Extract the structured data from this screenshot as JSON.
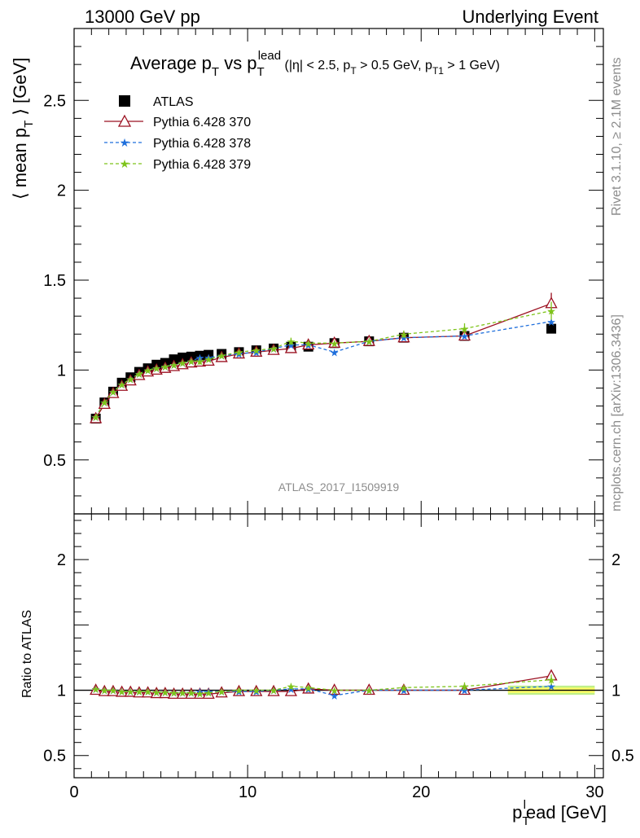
{
  "header": {
    "left": "13000 GeV pp",
    "right": "Underlying Event"
  },
  "side_text": {
    "upper": "Rivet 3.1.10, ≥ 2.1M events",
    "lower": "mcplots.cern.ch [arXiv:1306.3436]"
  },
  "analysis_id": "ATLAS_2017_I1509919",
  "colors": {
    "atlas": "#000000",
    "p370": "#9b1020",
    "p378": "#1f6fdc",
    "p379": "#7ec41a",
    "band_stat": "#ffff66",
    "band_total": "#bfef8a"
  },
  "chart_data": [
    {
      "type": "scatter",
      "title": "Average p_T vs p_T^lead (|η| < 2.5, p_T > 0.5 GeV, p_T1 > 1 GeV)",
      "ylabel": "⟨ mean p_T ⟩ [GeV]",
      "xlabel": "",
      "xlim": [
        0,
        30.5
      ],
      "ylim": [
        0.2,
        2.9
      ],
      "y_ticks": [
        0.5,
        1,
        1.5,
        2,
        2.5
      ],
      "x_ticks": [
        0,
        10,
        20,
        30
      ],
      "legend_position": "top-left",
      "x": [
        1.25,
        1.75,
        2.25,
        2.75,
        3.25,
        3.75,
        4.25,
        4.75,
        5.25,
        5.75,
        6.25,
        6.75,
        7.25,
        7.75,
        8.5,
        9.5,
        10.5,
        11.5,
        12.5,
        13.5,
        15,
        17,
        19,
        22.5,
        27.5
      ],
      "series": [
        {
          "name": "ATLAS",
          "key": "atlas",
          "marker": "square",
          "line": "none",
          "values": [
            0.73,
            0.82,
            0.88,
            0.93,
            0.96,
            0.99,
            1.01,
            1.03,
            1.04,
            1.06,
            1.07,
            1.075,
            1.08,
            1.085,
            1.09,
            1.1,
            1.11,
            1.12,
            1.13,
            1.13,
            1.15,
            1.16,
            1.18,
            1.19,
            1.23
          ]
        },
        {
          "name": "Pythia 6.428 370",
          "key": "p370",
          "marker": "triangle",
          "line": "solid",
          "values": [
            0.73,
            0.81,
            0.87,
            0.91,
            0.94,
            0.97,
            0.99,
            1.0,
            1.01,
            1.02,
            1.03,
            1.04,
            1.045,
            1.05,
            1.07,
            1.09,
            1.1,
            1.11,
            1.12,
            1.14,
            1.15,
            1.16,
            1.18,
            1.19,
            1.37
          ],
          "yerr": [
            0,
            0,
            0,
            0,
            0,
            0,
            0,
            0,
            0,
            0,
            0,
            0,
            0,
            0,
            0,
            0,
            0,
            0,
            0,
            0,
            0,
            0,
            0,
            0,
            0.06
          ]
        },
        {
          "name": "Pythia 6.428 378",
          "key": "p378",
          "marker": "star",
          "line": "dashed",
          "values": [
            0.74,
            0.82,
            0.88,
            0.92,
            0.95,
            0.98,
            1.0,
            1.01,
            1.02,
            1.03,
            1.04,
            1.05,
            1.07,
            1.07,
            1.08,
            1.09,
            1.1,
            1.12,
            1.14,
            1.14,
            1.1,
            1.16,
            1.18,
            1.19,
            1.27
          ]
        },
        {
          "name": "Pythia 6.428 379",
          "key": "p379",
          "marker": "star",
          "line": "dashed",
          "values": [
            0.74,
            0.82,
            0.88,
            0.92,
            0.95,
            0.98,
            1.0,
            1.01,
            1.02,
            1.03,
            1.04,
            1.05,
            1.05,
            1.06,
            1.08,
            1.1,
            1.11,
            1.12,
            1.16,
            1.15,
            1.15,
            1.16,
            1.2,
            1.23,
            1.33
          ],
          "yerr": [
            0,
            0,
            0,
            0,
            0,
            0,
            0,
            0,
            0,
            0,
            0,
            0,
            0.02,
            0,
            0,
            0,
            0,
            0,
            0.02,
            0,
            0,
            0,
            0.02,
            0.03,
            0.05
          ]
        }
      ]
    },
    {
      "type": "scatter",
      "title": "",
      "ylabel": "Ratio to ATLAS",
      "xlabel": "p_T^lead [GeV]",
      "xlim": [
        0,
        30.5
      ],
      "ylim": [
        0.33,
        2.35
      ],
      "y_ticks": [
        0.5,
        1,
        2
      ],
      "x_ticks": [
        0,
        10,
        20,
        30
      ],
      "x": [
        1.25,
        1.75,
        2.25,
        2.75,
        3.25,
        3.75,
        4.25,
        4.75,
        5.25,
        5.75,
        6.25,
        6.75,
        7.25,
        7.75,
        8.5,
        9.5,
        10.5,
        11.5,
        12.5,
        13.5,
        15,
        17,
        19,
        22.5,
        27.5
      ],
      "series": [
        {
          "name": "Pythia 6.428 370",
          "key": "p370",
          "marker": "triangle",
          "line": "solid",
          "values": [
            1.0,
            0.99,
            0.99,
            0.985,
            0.985,
            0.98,
            0.98,
            0.975,
            0.975,
            0.97,
            0.97,
            0.97,
            0.97,
            0.97,
            0.98,
            0.99,
            0.99,
            0.99,
            0.99,
            1.01,
            1.0,
            1.0,
            1.0,
            1.0,
            1.11
          ],
          "yerr": [
            0,
            0,
            0,
            0,
            0,
            0,
            0,
            0,
            0,
            0,
            0,
            0,
            0,
            0,
            0,
            0,
            0,
            0,
            0,
            0,
            0,
            0,
            0,
            0,
            0.04
          ]
        },
        {
          "name": "Pythia 6.428 378",
          "key": "p378",
          "marker": "star",
          "line": "dashed",
          "values": [
            1.01,
            1.0,
            1.0,
            0.99,
            0.99,
            0.99,
            0.99,
            0.985,
            0.985,
            0.98,
            0.98,
            0.98,
            0.99,
            0.99,
            0.99,
            0.99,
            0.99,
            1.0,
            1.01,
            1.01,
            0.96,
            1.0,
            1.0,
            1.0,
            1.03
          ]
        },
        {
          "name": "Pythia 6.428 379",
          "key": "p379",
          "marker": "star",
          "line": "dashed",
          "values": [
            1.01,
            1.0,
            1.0,
            0.99,
            0.99,
            0.99,
            0.99,
            0.985,
            0.985,
            0.98,
            0.98,
            0.98,
            0.975,
            0.98,
            0.99,
            1.0,
            1.0,
            1.0,
            1.03,
            1.02,
            1.0,
            1.0,
            1.02,
            1.03,
            1.08
          ],
          "yerr": [
            0,
            0,
            0,
            0,
            0,
            0,
            0,
            0,
            0,
            0,
            0,
            0,
            0,
            0,
            0,
            0,
            0,
            0,
            0.02,
            0,
            0,
            0,
            0.02,
            0.03,
            0.04
          ]
        }
      ],
      "reference_band": {
        "x_from": 25,
        "x_to": 30,
        "half_width_stat": 0.02,
        "half_width_total": 0.035
      }
    }
  ]
}
